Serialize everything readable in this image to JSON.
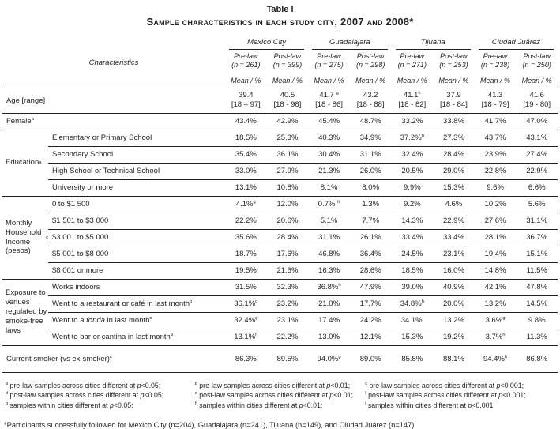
{
  "title": {
    "line1": "Table I",
    "line2": "Sample characteristics in each study city, 2007 and 2008*"
  },
  "header": {
    "characteristics_label": "Characteristics",
    "stat_label": "Mean / %",
    "cities": [
      {
        "name": "Mexico City",
        "phases": [
          {
            "label": "Pre-law",
            "n": "(n = 261)"
          },
          {
            "label": "Post-law",
            "n": "(n = 399)"
          }
        ]
      },
      {
        "name": "Guadalajara",
        "phases": [
          {
            "label": "Pre-law",
            "n": "(n = 275)"
          },
          {
            "label": "Post-law",
            "n": "(n = 298)"
          }
        ]
      },
      {
        "name": "Tijuana",
        "phases": [
          {
            "label": "Pre-law",
            "n": "(n = 271)"
          },
          {
            "label": "Post-law",
            "n": "(n = 253)"
          }
        ]
      },
      {
        "name": "Ciudad Juárez",
        "phases": [
          {
            "label": "Pre-law",
            "n": "(n = 238)"
          },
          {
            "label": "Post-law",
            "n": "(n = 250)"
          }
        ]
      }
    ]
  },
  "sections": [
    {
      "id": "age",
      "group": "",
      "rows": [
        {
          "label": "Age [range]",
          "values": [
            [
              "39.4",
              "[18 – 97]"
            ],
            [
              "40.5",
              "[18 - 98]"
            ],
            [
              "41.7 ^{g}",
              "[18 - 86]"
            ],
            [
              "43.2",
              "[18 - 88]"
            ],
            [
              "41.1^{h}",
              "[18 - 82]"
            ],
            [
              "37.9",
              "[18 - 84]"
            ],
            [
              "41.3",
              "[18 - 79]"
            ],
            [
              "41.6",
              "[19 - 80]"
            ]
          ]
        }
      ]
    },
    {
      "id": "female",
      "group": "",
      "rows": [
        {
          "label": "Female^{a}",
          "values": [
            "43.4%",
            "42.9%",
            "45.4%",
            "48.7%",
            "33.2%",
            "33.8%",
            "41.7%",
            "47.0%"
          ]
        }
      ]
    },
    {
      "id": "education",
      "group": "Education^{a}",
      "rows": [
        {
          "label": "Elementary or Primary School",
          "values": [
            "18.5%",
            "25.3%",
            "40.3%",
            "34.9%",
            "37.2%^{h}",
            "27.3%",
            "43.7%",
            "43.1%"
          ]
        },
        {
          "label": "Secondary School",
          "values": [
            "35.4%",
            "36.1%",
            "30.4%",
            "31.1%",
            "32.4%",
            "28.4%",
            "23.9%",
            "27.4%"
          ]
        },
        {
          "label": "High School or Technical School",
          "values": [
            "33.0%",
            "27.9%",
            "21.3%",
            "26.0%",
            "20.5%",
            "29.0%",
            "22.8%",
            "22.9%"
          ]
        },
        {
          "label": "University or more",
          "values": [
            "13.1%",
            "10.8%",
            "8.1%",
            "8.0%",
            "9.9%",
            "15.3%",
            "9.6%",
            "6.6%"
          ]
        }
      ]
    },
    {
      "id": "income",
      "group": "Monthly Household Income (pesos)^{c}",
      "rows": [
        {
          "label": "0 to $1 500",
          "values": [
            "4.1%^{g}",
            "12.0%",
            "0.7% ^{h}",
            "1.3%",
            "9.2%",
            "4.6%",
            "10.2%",
            "5.6%"
          ]
        },
        {
          "label": "$1 501 to $3 000",
          "values": [
            "22.2%",
            "20.6%",
            "5.1%",
            "7.7%",
            "14.3%",
            "22.9%",
            "27.6%",
            "31.1%"
          ]
        },
        {
          "label": "$3 001 to $5 000",
          "values": [
            "35.6%",
            "28.4%",
            "31.1%",
            "26.1%",
            "33.4%",
            "33.4%",
            "28.1%",
            "36.7%"
          ]
        },
        {
          "label": "$5 001 to $8 000",
          "values": [
            "18.7%",
            "17.6%",
            "46.8%",
            "36.4%",
            "24.5%",
            "23.1%",
            "19.4%",
            "15.1%"
          ]
        },
        {
          "label": "$8 001 or more",
          "values": [
            "19.5%",
            "21.6%",
            "16.3%",
            "28.6%",
            "18.5%",
            "16.0%",
            "14.8%",
            "11.5%"
          ]
        }
      ]
    },
    {
      "id": "exposure",
      "group": "Exposure to venues regulated by smoke-free laws",
      "rows": [
        {
          "label": "Works indoors",
          "values": [
            "31.5%",
            "32.3%",
            "36.8%^{h}",
            "47.9%",
            "39.0%",
            "40.9%",
            "42.1%",
            "47.8%"
          ]
        },
        {
          "label": "Went to a restaurant or café in last month^{b}",
          "values": [
            "36.1%^{g}",
            "23.2%",
            "21.0%",
            "17.7%",
            "34.8%^{h}",
            "20.0%",
            "13.2%",
            "14.5%"
          ]
        },
        {
          "label": "Went to a *fonda* in last month^{c}",
          "values": [
            "32.4%^{g}",
            "23.1%",
            "17.4%",
            "24.2%",
            "34.1%^{i}",
            "13.2%",
            "3.6%^{g}",
            "9.8%"
          ]
        },
        {
          "label": "Went to bar or cantina in last month^{a}",
          "values": [
            "13.1%^{h}",
            "22.2%",
            "13.0%",
            "12.1%",
            "15.3%",
            "19.2%",
            "3.7%^{h}",
            "11.3%"
          ]
        }
      ]
    },
    {
      "id": "smoker",
      "group": "",
      "rows": [
        {
          "label": "Current smoker (vs ex-smoker)^{c}",
          "values": [
            "86.3%",
            "89.5%",
            "94.0%^{g}",
            "89.0%",
            "85.8%",
            "88.1%",
            "94.4%^{h}",
            "86.8%"
          ]
        }
      ]
    }
  ],
  "footnotes": {
    "columns": [
      [
        "^{a} pre-law samples across cities different at *p*<0.05;",
        "^{d} post-law samples across cities different at *p*<0.05;",
        "^{g} samples within cities different at *p*<0.05;"
      ],
      [
        "^{b} pre-law samples across cities different at *p*<0.01;",
        "^{e} post-law samples across cities different at *p*<0.01;",
        "^{h} samples within cities different at *p*<0.01;"
      ],
      [
        "^{c} pre-law samples across cities different at *p*<0.001;",
        "^{f} post-law samples across cities different at *p*<0.001;",
        "^{i} samples within cities different at *p*<0.001"
      ]
    ],
    "participants": "*Participants successfully followed for Mexico City (n=204), Guadalajara (n=241), Tijuana (n=149), and Ciudad Juárez (n=147)"
  }
}
